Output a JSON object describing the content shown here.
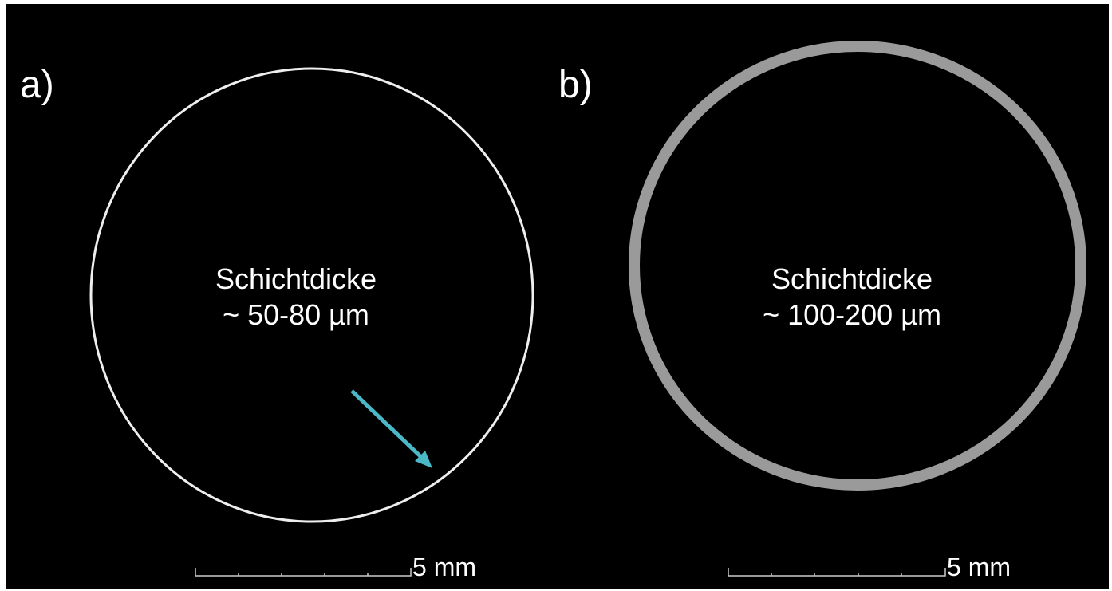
{
  "panels": [
    {
      "label": "a)",
      "line1": "Schichtdicke",
      "line2": "~ 50-80 µm",
      "scale": "5 mm"
    },
    {
      "label": "b)",
      "line1": "Schichtdicke",
      "line2": "~ 100-200 µm",
      "scale": "5 mm"
    }
  ]
}
